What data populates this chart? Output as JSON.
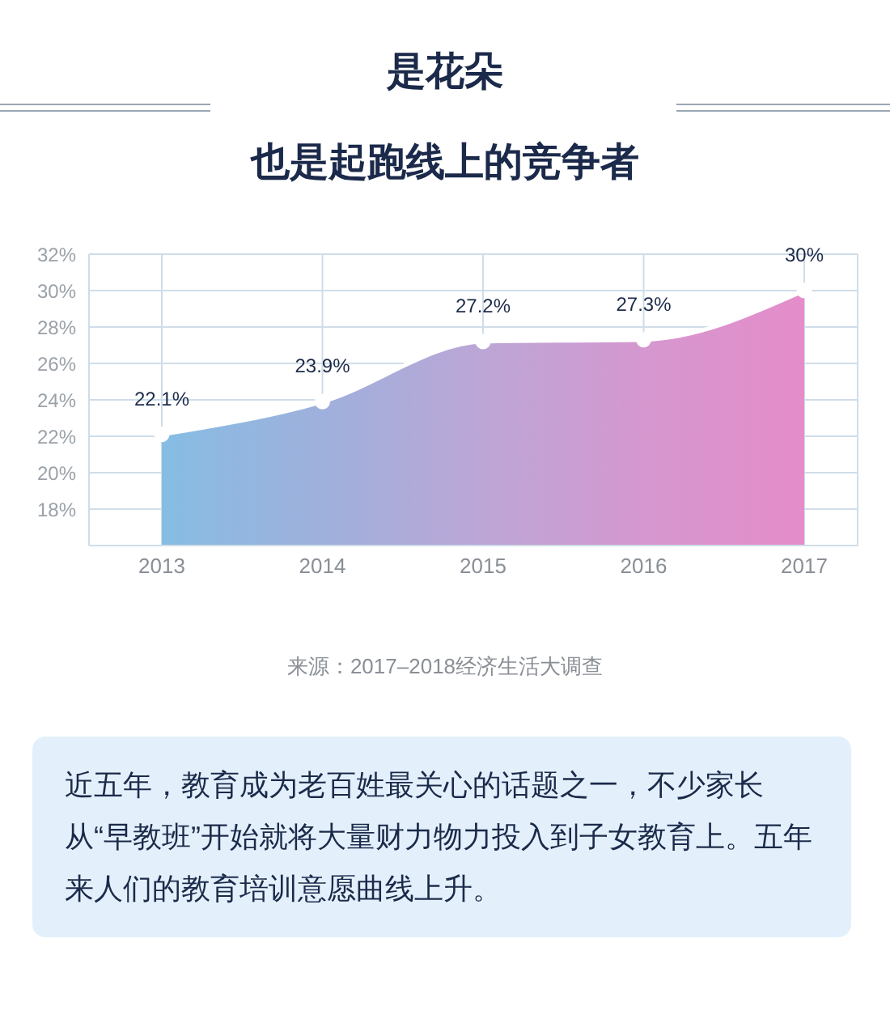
{
  "chart_data": {
    "type": "area",
    "title": "是花朵",
    "subtitle": "也是起跑线上的竞争者",
    "categories": [
      "2013",
      "2014",
      "2015",
      "2016",
      "2017"
    ],
    "series": [
      {
        "color": "#ffffff",
        "colors": [
          "#86bde3",
          "#9fb0dc",
          "#bca6d6",
          "#d597cf",
          "#e58dca"
        ],
        "values": [
          22.1,
          23.9,
          27.2,
          27.3,
          30
        ],
        "value_labels": [
          "22.1%",
          "23.9%",
          "27.2%",
          "27.3%",
          "30%"
        ]
      }
    ],
    "ylim": [
      16,
      32
    ],
    "yticks": [
      {
        "value": 18,
        "label": "18%"
      },
      {
        "value": 20,
        "label": "20%"
      },
      {
        "value": 22,
        "label": "22%"
      },
      {
        "value": 24,
        "label": "24%"
      },
      {
        "value": 26,
        "label": "26%"
      },
      {
        "value": 28,
        "label": "28%"
      },
      {
        "value": 30,
        "label": "30%"
      },
      {
        "value": 32,
        "label": "32%"
      }
    ],
    "grid": true,
    "marker": "circle",
    "annotations": [
      "来源：2017–2018经济生活大调查",
      "近五年，教育成为老百姓最关心的话题之一，不少家长从“早教班”开始就将大量财力物力投入到子女教育上。五年来人们的教育培训意愿曲线上升。"
    ]
  }
}
